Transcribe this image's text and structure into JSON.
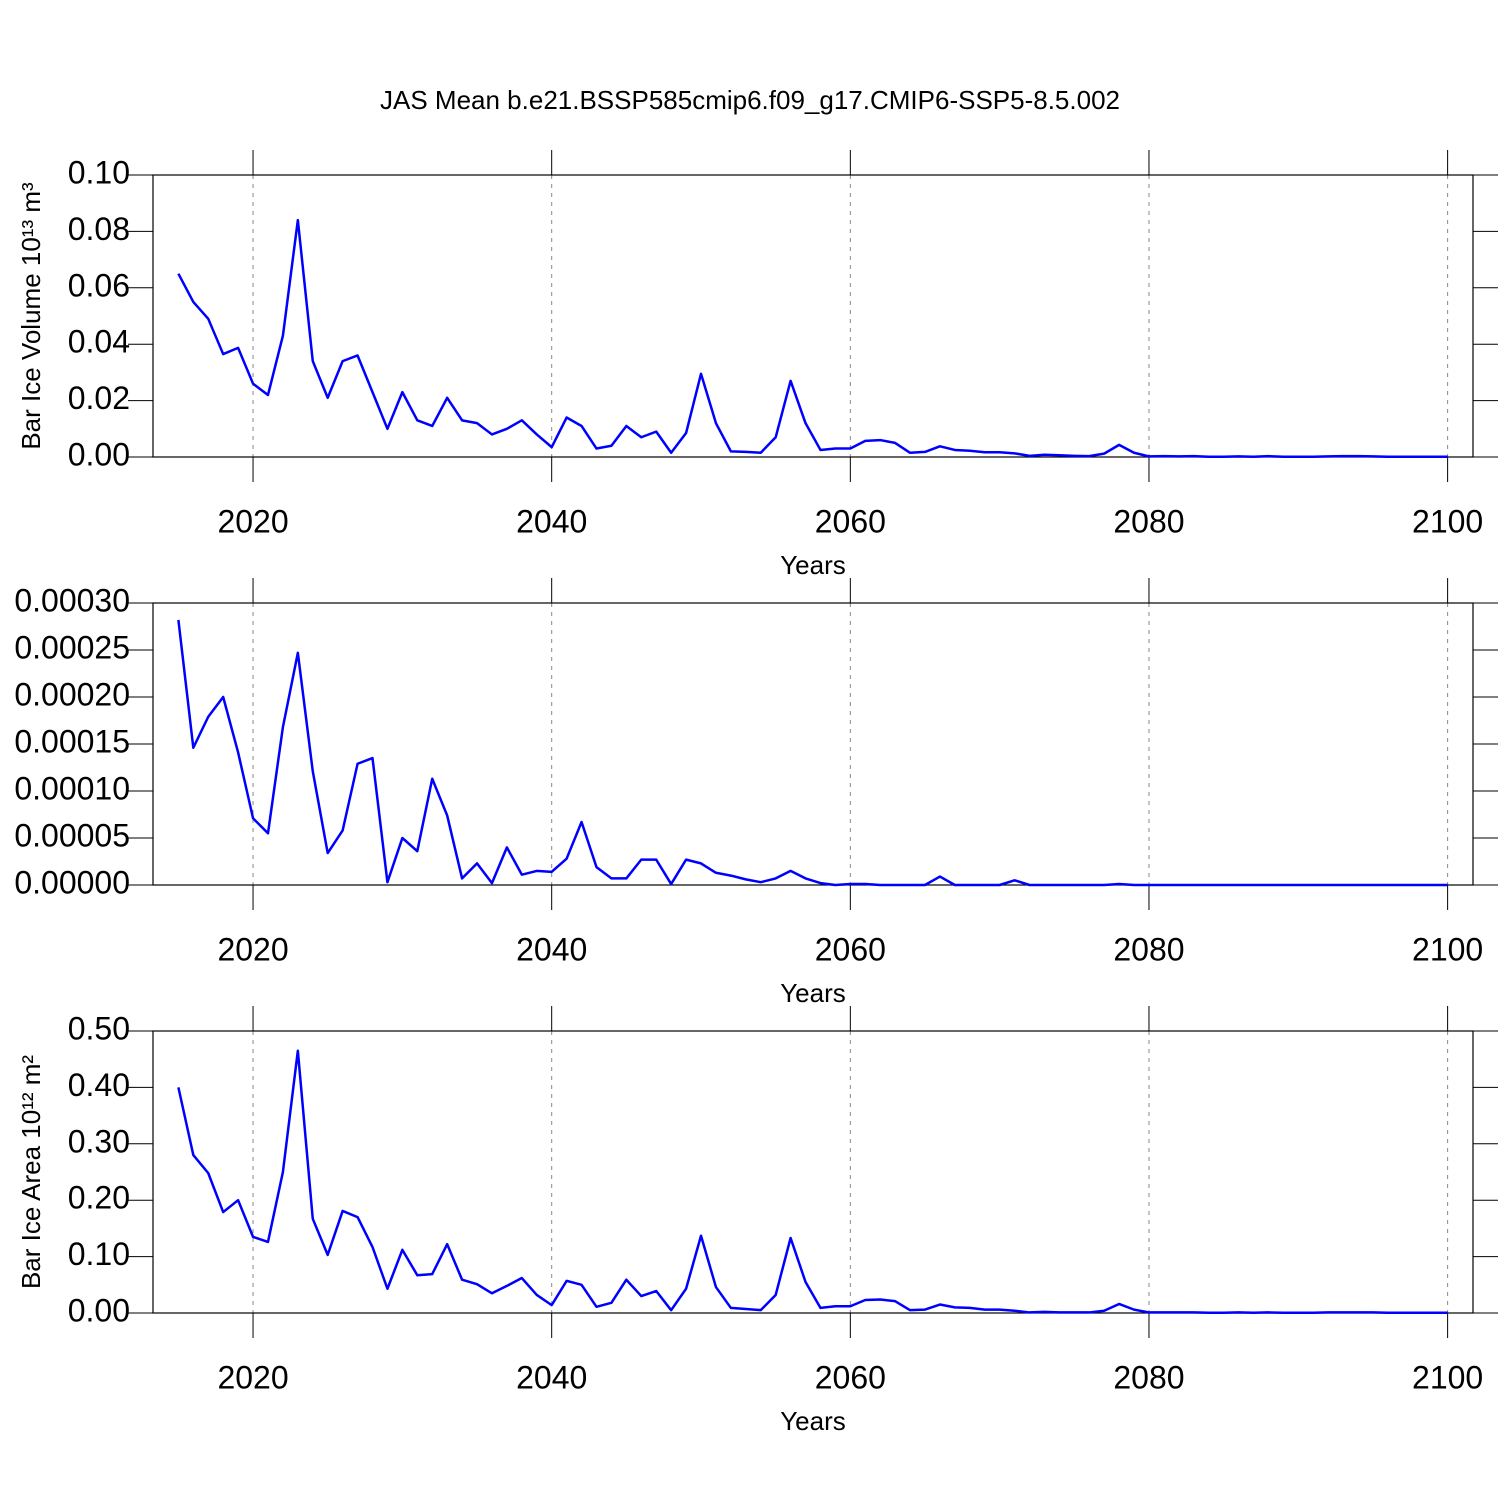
{
  "chart_data": [
    {
      "type": "line",
      "title": "JAS Mean b.e21.BSSP585cmip6.f09_g17.CMIP6-SSP5-8.5.002",
      "xlabel": "Years",
      "ylabel": "Bar Ice Volume 10¹³ m³",
      "color": "#0000ff",
      "grid": true,
      "x": [
        2015,
        2016,
        2017,
        2018,
        2019,
        2020,
        2021,
        2022,
        2023,
        2024,
        2025,
        2026,
        2027,
        2028,
        2029,
        2030,
        2031,
        2032,
        2033,
        2034,
        2035,
        2036,
        2037,
        2038,
        2039,
        2040,
        2041,
        2042,
        2043,
        2044,
        2045,
        2046,
        2047,
        2048,
        2049,
        2050,
        2051,
        2052,
        2053,
        2054,
        2055,
        2056,
        2057,
        2058,
        2059,
        2060,
        2061,
        2062,
        2063,
        2064,
        2065,
        2066,
        2067,
        2068,
        2069,
        2070,
        2071,
        2072,
        2073,
        2074,
        2075,
        2076,
        2077,
        2078,
        2079,
        2080,
        2081,
        2082,
        2083,
        2084,
        2085,
        2086,
        2087,
        2088,
        2089,
        2090,
        2091,
        2092,
        2093,
        2094,
        2095,
        2096,
        2097,
        2098,
        2099,
        2100
      ],
      "values": [
        0.065,
        0.055,
        0.049,
        0.0365,
        0.0387,
        0.026,
        0.022,
        0.043,
        0.084,
        0.034,
        0.021,
        0.034,
        0.036,
        0.023,
        0.01,
        0.023,
        0.013,
        0.011,
        0.021,
        0.013,
        0.012,
        0.008,
        0.01,
        0.013,
        0.008,
        0.0035,
        0.014,
        0.011,
        0.003,
        0.004,
        0.011,
        0.007,
        0.009,
        0.0015,
        0.0085,
        0.0295,
        0.012,
        0.002,
        0.0018,
        0.0015,
        0.007,
        0.027,
        0.012,
        0.0025,
        0.003,
        0.003,
        0.0057,
        0.006,
        0.005,
        0.0015,
        0.0018,
        0.0038,
        0.0025,
        0.0022,
        0.0017,
        0.0017,
        0.0013,
        0.0004,
        0.0008,
        0.0006,
        0.0004,
        0.0003,
        0.0012,
        0.0043,
        0.0015,
        0.0002,
        0.0003,
        0.0002,
        0.0003,
        0.0001,
        0.0001,
        0.0002,
        0.0001,
        0.0003,
        0.0001,
        0.0001,
        0.0001,
        0.0002,
        0.0003,
        0.0003,
        0.0002,
        0.0001,
        0.0001,
        0.0001,
        0.0001,
        0.0001
      ],
      "xlim": [
        2013.3,
        2101.7
      ],
      "xticks": [
        2020,
        2040,
        2060,
        2080,
        2100
      ],
      "ylim": [
        0,
        0.1
      ],
      "yticks": [
        {
          "value": 0,
          "label": "0.00"
        },
        {
          "value": 0.02,
          "label": "0.02"
        },
        {
          "value": 0.04,
          "label": "0.04"
        },
        {
          "value": 0.06,
          "label": "0.06"
        },
        {
          "value": 0.08,
          "label": "0.08"
        },
        {
          "value": 0.1,
          "label": "0.10"
        }
      ]
    },
    {
      "type": "line",
      "xlabel": "Years",
      "color": "#0000ff",
      "grid": true,
      "x": [
        2015,
        2016,
        2017,
        2018,
        2019,
        2020,
        2021,
        2022,
        2023,
        2024,
        2025,
        2026,
        2027,
        2028,
        2029,
        2030,
        2031,
        2032,
        2033,
        2034,
        2035,
        2036,
        2037,
        2038,
        2039,
        2040,
        2041,
        2042,
        2043,
        2044,
        2045,
        2046,
        2047,
        2048,
        2049,
        2050,
        2051,
        2052,
        2053,
        2054,
        2055,
        2056,
        2057,
        2058,
        2059,
        2060,
        2061,
        2062,
        2063,
        2064,
        2065,
        2066,
        2067,
        2068,
        2069,
        2070,
        2071,
        2072,
        2073,
        2074,
        2075,
        2076,
        2077,
        2078,
        2079,
        2080,
        2081,
        2082,
        2083,
        2084,
        2085,
        2086,
        2087,
        2088,
        2089,
        2090,
        2091,
        2092,
        2093,
        2094,
        2095,
        2096,
        2097,
        2098,
        2099,
        2100
      ],
      "values": [
        0.000282,
        0.000146,
        0.000179,
        0.0002,
        0.000141,
        7.1e-05,
        5.5e-05,
        0.000168,
        0.000247,
        0.000121,
        3.4e-05,
        5.8e-05,
        0.000129,
        0.000135,
        3e-06,
        5e-05,
        3.6e-05,
        0.000113,
        7.4e-05,
        7e-06,
        2.3e-05,
        2e-06,
        4e-05,
        1.1e-05,
        1.5e-05,
        1.4e-05,
        2.8e-05,
        6.7e-05,
        1.9e-05,
        7e-06,
        7e-06,
        2.7e-05,
        2.7e-05,
        1e-06,
        2.7e-05,
        2.3e-05,
        1.3e-05,
        1e-05,
        6e-06,
        3e-06,
        7e-06,
        1.5e-05,
        7e-06,
        2e-06,
        0,
        1e-06,
        1e-06,
        0,
        0,
        0,
        0,
        9e-06,
        0,
        0,
        0,
        0,
        5e-06,
        0,
        0,
        0,
        0,
        0,
        0,
        1e-06,
        0,
        0,
        0,
        0,
        0,
        0,
        0,
        0,
        0,
        0,
        0,
        0,
        0,
        0,
        0,
        0,
        0,
        0,
        0,
        0,
        0,
        0
      ],
      "xlim": [
        2013.3,
        2101.7
      ],
      "xticks": [
        2020,
        2040,
        2060,
        2080,
        2100
      ],
      "ylim": [
        0,
        0.0003
      ],
      "yticks": [
        {
          "value": 0,
          "label": "0.00000"
        },
        {
          "value": 5e-05,
          "label": "0.00005"
        },
        {
          "value": 0.0001,
          "label": "0.00010"
        },
        {
          "value": 0.00015,
          "label": "0.00015"
        },
        {
          "value": 0.0002,
          "label": "0.00020"
        },
        {
          "value": 0.00025,
          "label": "0.00025"
        },
        {
          "value": 0.0003,
          "label": "0.00030"
        }
      ]
    },
    {
      "type": "line",
      "xlabel": "Years",
      "ylabel": "Bar Ice Area 10¹² m²",
      "color": "#0000ff",
      "grid": true,
      "x": [
        2015,
        2016,
        2017,
        2018,
        2019,
        2020,
        2021,
        2022,
        2023,
        2024,
        2025,
        2026,
        2027,
        2028,
        2029,
        2030,
        2031,
        2032,
        2033,
        2034,
        2035,
        2036,
        2037,
        2038,
        2039,
        2040,
        2041,
        2042,
        2043,
        2044,
        2045,
        2046,
        2047,
        2048,
        2049,
        2050,
        2051,
        2052,
        2053,
        2054,
        2055,
        2056,
        2057,
        2058,
        2059,
        2060,
        2061,
        2062,
        2063,
        2064,
        2065,
        2066,
        2067,
        2068,
        2069,
        2070,
        2071,
        2072,
        2073,
        2074,
        2075,
        2076,
        2077,
        2078,
        2079,
        2080,
        2081,
        2082,
        2083,
        2084,
        2085,
        2086,
        2087,
        2088,
        2089,
        2090,
        2091,
        2092,
        2093,
        2094,
        2095,
        2096,
        2097,
        2098,
        2099,
        2100
      ],
      "values": [
        0.4,
        0.28,
        0.248,
        0.179,
        0.2,
        0.135,
        0.126,
        0.25,
        0.465,
        0.167,
        0.103,
        0.181,
        0.17,
        0.117,
        0.043,
        0.112,
        0.067,
        0.069,
        0.122,
        0.059,
        0.051,
        0.035,
        0.048,
        0.062,
        0.032,
        0.014,
        0.057,
        0.05,
        0.011,
        0.018,
        0.059,
        0.03,
        0.039,
        0.005,
        0.043,
        0.137,
        0.046,
        0.009,
        0.007,
        0.005,
        0.032,
        0.133,
        0.055,
        0.009,
        0.012,
        0.012,
        0.023,
        0.024,
        0.021,
        0.005,
        0.006,
        0.015,
        0.01,
        0.009,
        0.006,
        0.006,
        0.004,
        0.001,
        0.002,
        0.001,
        0.001,
        0.001,
        0.004,
        0.016,
        0.006,
        0.001,
        0.001,
        0.001,
        0.001,
        0.0005,
        0.0005,
        0.001,
        0.0005,
        0.001,
        0.0005,
        0.0005,
        0.0005,
        0.001,
        0.001,
        0.001,
        0.001,
        0.0005,
        0.0005,
        0.0005,
        0.0005,
        0.0005
      ],
      "xlim": [
        2013.3,
        2101.7
      ],
      "xticks": [
        2020,
        2040,
        2060,
        2080,
        2100
      ],
      "ylim": [
        0,
        0.5
      ],
      "yticks": [
        {
          "value": 0,
          "label": "0.00"
        },
        {
          "value": 0.1,
          "label": "0.10"
        },
        {
          "value": 0.2,
          "label": "0.20"
        },
        {
          "value": 0.3,
          "label": "0.30"
        },
        {
          "value": 0.4,
          "label": "0.40"
        },
        {
          "value": 0.5,
          "label": "0.50"
        }
      ]
    }
  ]
}
